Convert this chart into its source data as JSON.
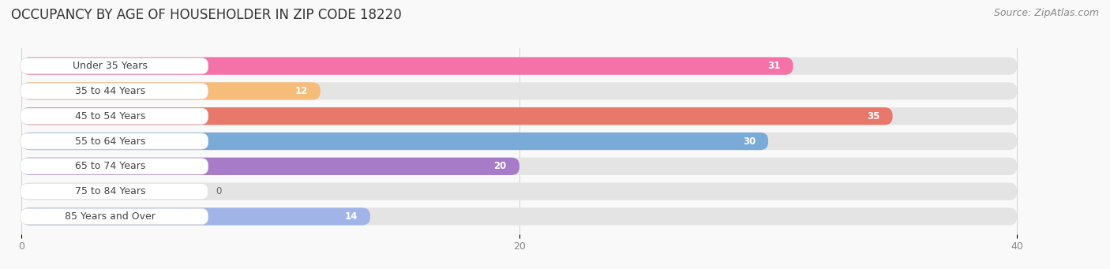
{
  "title": "OCCUPANCY BY AGE OF HOUSEHOLDER IN ZIP CODE 18220",
  "source": "Source: ZipAtlas.com",
  "categories": [
    "Under 35 Years",
    "35 to 44 Years",
    "45 to 54 Years",
    "55 to 64 Years",
    "65 to 74 Years",
    "75 to 84 Years",
    "85 Years and Over"
  ],
  "values": [
    31,
    12,
    35,
    30,
    20,
    0,
    14
  ],
  "bar_colors": [
    "#F472A8",
    "#F5BC7A",
    "#E8796A",
    "#7AAAD8",
    "#A87BC8",
    "#6ECEBE",
    "#A0B4E8"
  ],
  "xlim_min": 0,
  "xlim_max": 40,
  "xticks": [
    0,
    20,
    40
  ],
  "bg_color": "#f9f9f9",
  "bar_bg_color": "#e4e4e4",
  "label_box_color": "#ffffff",
  "title_fontsize": 12,
  "source_fontsize": 9,
  "label_fontsize": 9,
  "value_fontsize": 8.5,
  "tick_fontsize": 9,
  "bar_height": 0.68,
  "bar_spacing": 1.0
}
